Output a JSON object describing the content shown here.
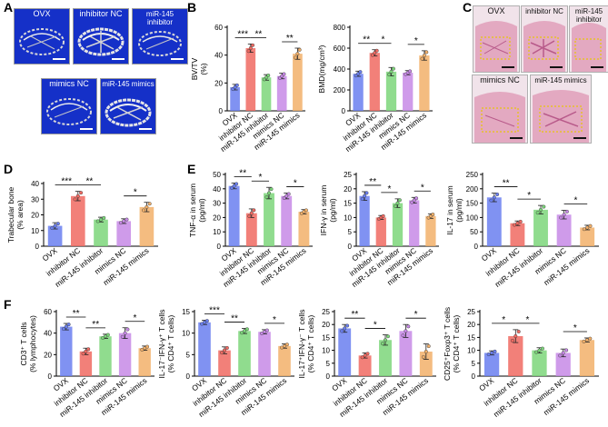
{
  "panels": {
    "A": {
      "label": "A",
      "images": [
        "OVX",
        "inhibitor NC",
        "miR-145 inhibitor",
        "mimics NC",
        "miR-145 mimics"
      ]
    },
    "B": {
      "label": "B"
    },
    "C": {
      "label": "C",
      "images": [
        "OVX",
        "inhibitor NC",
        "miR-145 inhibitor",
        "mimics NC",
        "miR-145 mimics"
      ]
    },
    "D": {
      "label": "D"
    },
    "E": {
      "label": "E"
    },
    "F": {
      "label": "F"
    }
  },
  "colors": {
    "groups": [
      "#6a7ff0",
      "#f06a62",
      "#7cd67a",
      "#c789e6",
      "#f2b06a"
    ],
    "ct_background": "#1530c8"
  },
  "chart_data": [
    {
      "type": "bar",
      "panel": "B",
      "ylabel": "BV/TV (%)",
      "ylim": [
        0,
        60
      ],
      "yticks": [
        0,
        20,
        40,
        60
      ],
      "categories": [
        "OVX",
        "inhibitor NC",
        "miR-145 inhibitor",
        "mimics NC",
        "miR-145 mimics"
      ],
      "values": [
        17,
        45,
        24,
        25,
        41
      ],
      "errors": [
        2,
        3,
        2,
        2,
        4
      ],
      "significance": [
        {
          "from": 0,
          "to": 1,
          "label": "***"
        },
        {
          "from": 1,
          "to": 2,
          "label": "**"
        },
        {
          "from": 3,
          "to": 4,
          "label": "**"
        }
      ]
    },
    {
      "type": "bar",
      "panel": "B",
      "ylabel": "BMD(mg/cm³)",
      "ylim": [
        0,
        800
      ],
      "yticks": [
        0,
        200,
        400,
        600,
        800
      ],
      "categories": [
        "OVX",
        "inhibitor NC",
        "miR-145 inhibitor",
        "mimics NC",
        "miR-145 mimics"
      ],
      "values": [
        355,
        555,
        375,
        365,
        530
      ],
      "errors": [
        25,
        30,
        40,
        20,
        45
      ],
      "significance": [
        {
          "from": 0,
          "to": 1,
          "label": "**"
        },
        {
          "from": 1,
          "to": 2,
          "label": "*"
        },
        {
          "from": 3,
          "to": 4,
          "label": "*"
        }
      ]
    },
    {
      "type": "bar",
      "panel": "D",
      "ylabel": "Trabecular bone (% area)",
      "ylim": [
        0,
        40
      ],
      "yticks": [
        0,
        10,
        20,
        30,
        40
      ],
      "categories": [
        "OVX",
        "inhibitor NC",
        "miR-145 inhibitor",
        "mimics NC",
        "miR-145 mimics"
      ],
      "values": [
        13,
        32,
        17,
        16,
        25
      ],
      "errors": [
        2,
        3,
        1.5,
        1.5,
        3
      ],
      "significance": [
        {
          "from": 0,
          "to": 1,
          "label": "***"
        },
        {
          "from": 1,
          "to": 2,
          "label": "**"
        },
        {
          "from": 3,
          "to": 4,
          "label": "*"
        }
      ]
    },
    {
      "type": "bar",
      "panel": "E",
      "ylabel": "TNF-α in serum (pg/ml)",
      "ylim": [
        0,
        50
      ],
      "yticks": [
        0,
        10,
        20,
        30,
        40,
        50
      ],
      "categories": [
        "OVX",
        "inhibitor NC",
        "miR-145 inhibitor",
        "mimics NC",
        "miR-145 mimics"
      ],
      "values": [
        42,
        23,
        37,
        35,
        24
      ],
      "errors": [
        2,
        3,
        4,
        2,
        1.5
      ],
      "significance": [
        {
          "from": 0,
          "to": 1,
          "label": "**"
        },
        {
          "from": 1,
          "to": 2,
          "label": "*"
        },
        {
          "from": 3,
          "to": 4,
          "label": "*"
        }
      ]
    },
    {
      "type": "bar",
      "panel": "E",
      "ylabel": "IFN-γ in serum (pg/ml)",
      "ylim": [
        0,
        25
      ],
      "yticks": [
        0,
        5,
        10,
        15,
        20,
        25
      ],
      "categories": [
        "OVX",
        "inhibitor NC",
        "miR-145 inhibitor",
        "mimics NC",
        "miR-145 mimics"
      ],
      "values": [
        17.5,
        10,
        15,
        16,
        10.5
      ],
      "errors": [
        1.5,
        0.7,
        1.5,
        1,
        0.8
      ],
      "significance": [
        {
          "from": 0,
          "to": 1,
          "label": "**"
        },
        {
          "from": 1,
          "to": 2,
          "label": "*"
        },
        {
          "from": 3,
          "to": 4,
          "label": "*"
        }
      ]
    },
    {
      "type": "bar",
      "panel": "E",
      "ylabel": "IL-17 in serum (pg/ml)",
      "ylim": [
        0,
        250
      ],
      "yticks": [
        0,
        50,
        100,
        150,
        200,
        250
      ],
      "categories": [
        "OVX",
        "inhibitor NC",
        "miR-145 inhibitor",
        "mimics NC",
        "miR-145 mimics"
      ],
      "values": [
        170,
        80,
        127,
        110,
        65
      ],
      "errors": [
        15,
        8,
        15,
        15,
        8
      ],
      "significance": [
        {
          "from": 0,
          "to": 1,
          "label": "**"
        },
        {
          "from": 1,
          "to": 2,
          "label": "*"
        },
        {
          "from": 3,
          "to": 4,
          "label": "*"
        }
      ]
    },
    {
      "type": "bar",
      "panel": "F",
      "ylabel": "CD3⁺ T cells (% lymphocytes)",
      "ylim": [
        0,
        60
      ],
      "yticks": [
        0,
        20,
        40,
        60
      ],
      "categories": [
        "OVX",
        "inhibitor NC",
        "miR-145 inhibitor",
        "mimics NC",
        "miR-145 mimics"
      ],
      "values": [
        46,
        23,
        37,
        40,
        26
      ],
      "errors": [
        3,
        3,
        2,
        5,
        2
      ],
      "significance": [
        {
          "from": 0,
          "to": 1,
          "label": "**"
        },
        {
          "from": 1,
          "to": 2,
          "label": "**"
        },
        {
          "from": 3,
          "to": 4,
          "label": "*"
        }
      ]
    },
    {
      "type": "bar",
      "panel": "F",
      "ylabel": "IL-17⁻IFN-γ⁺ T cells (% CD4⁺ T cells)",
      "ylim": [
        0,
        15
      ],
      "yticks": [
        0,
        5,
        10,
        15
      ],
      "categories": [
        "OVX",
        "inhibitor NC",
        "miR-145 inhibitor",
        "mimics NC",
        "miR-145 mimics"
      ],
      "values": [
        12.5,
        6,
        10.5,
        10.3,
        7
      ],
      "errors": [
        0.5,
        0.8,
        0.6,
        0.5,
        0.5
      ],
      "significance": [
        {
          "from": 0,
          "to": 1,
          "label": "***"
        },
        {
          "from": 1,
          "to": 2,
          "label": "**"
        },
        {
          "from": 3,
          "to": 4,
          "label": "*"
        }
      ]
    },
    {
      "type": "bar",
      "panel": "F",
      "ylabel": "IL-17⁺IFN-γ⁻ T cells (% CD4⁺ T cells)",
      "ylim": [
        0,
        25
      ],
      "yticks": [
        0,
        5,
        10,
        15,
        20,
        25
      ],
      "categories": [
        "OVX",
        "inhibitor NC",
        "miR-145 inhibitor",
        "mimics NC",
        "miR-145 mimics"
      ],
      "values": [
        18.5,
        8,
        14,
        17.5,
        9.5
      ],
      "errors": [
        1.5,
        1,
        2,
        2.5,
        3
      ],
      "significance": [
        {
          "from": 0,
          "to": 1,
          "label": "**"
        },
        {
          "from": 1,
          "to": 2,
          "label": "*"
        },
        {
          "from": 3,
          "to": 4,
          "label": "*"
        }
      ]
    },
    {
      "type": "bar",
      "panel": "F",
      "ylabel": "CD25⁺Foxp3⁺ T cells (% CD4⁺ T cells)",
      "ylim": [
        0,
        25
      ],
      "yticks": [
        0,
        5,
        10,
        15,
        20,
        25
      ],
      "categories": [
        "OVX",
        "inhibitor NC",
        "miR-145 inhibitor",
        "mimics NC",
        "miR-145 mimics"
      ],
      "values": [
        9,
        15.5,
        10,
        9,
        14
      ],
      "errors": [
        0.8,
        2.5,
        1,
        1.5,
        0.8
      ],
      "significance": [
        {
          "from": 0,
          "to": 1,
          "label": "*"
        },
        {
          "from": 1,
          "to": 2,
          "label": "*"
        },
        {
          "from": 3,
          "to": 4,
          "label": "*"
        }
      ]
    }
  ]
}
